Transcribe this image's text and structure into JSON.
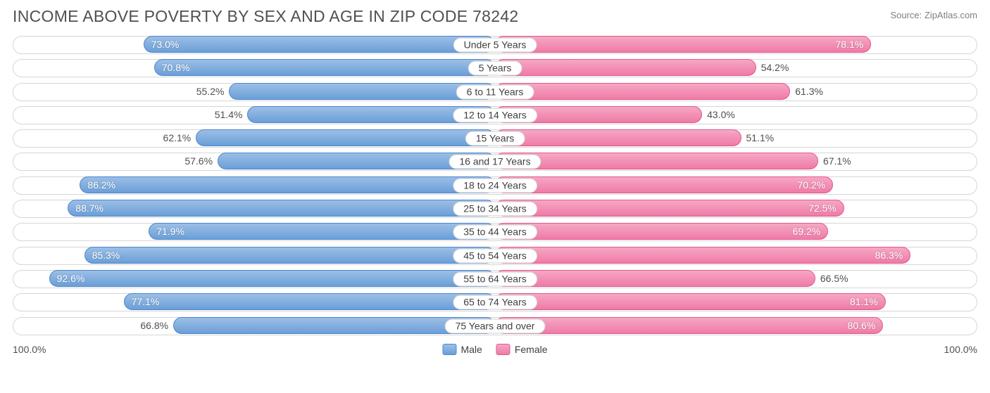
{
  "title": "INCOME ABOVE POVERTY BY SEX AND AGE IN ZIP CODE 78242",
  "source": "Source: ZipAtlas.com",
  "chart": {
    "type": "diverging-bar",
    "axis_max": 100.0,
    "axis_label_left": "100.0%",
    "axis_label_right": "100.0%",
    "male_color_top": "#9cbfe6",
    "male_color_bottom": "#6b9fd8",
    "male_border": "#4a86cf",
    "female_color_top": "#f6a8c4",
    "female_color_bottom": "#ef7aa7",
    "female_border": "#e2578e",
    "track_border": "#d6d6d6",
    "background": "#ffffff",
    "value_fontsize": 14,
    "label_fontsize": 14,
    "title_fontsize": 23,
    "inside_threshold": 68.0,
    "rows": [
      {
        "category": "Under 5 Years",
        "male": 73.0,
        "female": 78.1
      },
      {
        "category": "5 Years",
        "male": 70.8,
        "female": 54.2
      },
      {
        "category": "6 to 11 Years",
        "male": 55.2,
        "female": 61.3
      },
      {
        "category": "12 to 14 Years",
        "male": 51.4,
        "female": 43.0
      },
      {
        "category": "15 Years",
        "male": 62.1,
        "female": 51.1
      },
      {
        "category": "16 and 17 Years",
        "male": 57.6,
        "female": 67.1
      },
      {
        "category": "18 to 24 Years",
        "male": 86.2,
        "female": 70.2
      },
      {
        "category": "25 to 34 Years",
        "male": 88.7,
        "female": 72.5
      },
      {
        "category": "35 to 44 Years",
        "male": 71.9,
        "female": 69.2
      },
      {
        "category": "45 to 54 Years",
        "male": 85.3,
        "female": 86.3
      },
      {
        "category": "55 to 64 Years",
        "male": 92.6,
        "female": 66.5
      },
      {
        "category": "65 to 74 Years",
        "male": 77.1,
        "female": 81.1
      },
      {
        "category": "75 Years and over",
        "male": 66.8,
        "female": 80.6
      }
    ]
  },
  "legend": {
    "male": "Male",
    "female": "Female"
  }
}
